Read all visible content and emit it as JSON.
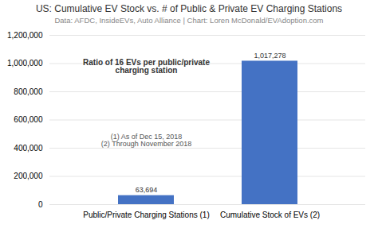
{
  "chart_data": {
    "type": "bar",
    "title": "US: Cumulative EV Stock vs. # of Public & Private EV Charging Stations",
    "subtitle": "Data: AFDC, InsideEVs, Auto Alliance | Chart: Loren McDonald/EVAdoption.com",
    "categories": [
      "Public/Private Charging Stations (1)",
      "Cumulative Stock of EVs (2)"
    ],
    "values": [
      63694,
      1017278
    ],
    "value_labels": [
      "63,694",
      "1,017,278"
    ],
    "data_labels": true,
    "color": "#4472c4",
    "annotations": [
      "Ratio of 16 EVs per public/private\ncharging station",
      "(1) As of Dec 15, 2018\n(2) Through November 2018"
    ],
    "ylim": [
      0,
      1200000
    ],
    "yticks": [
      0,
      {
        "value": 200000,
        "label": "200,000"
      },
      {
        "value": 400000,
        "label": "400,000"
      },
      {
        "value": 600000,
        "label": "600,000"
      },
      {
        "value": 800000,
        "label": "800,000"
      },
      {
        "value": 1000000,
        "label": "1,000,000"
      },
      {
        "value": 1200000,
        "label": "1,200,000"
      }
    ],
    "grid": true
  }
}
